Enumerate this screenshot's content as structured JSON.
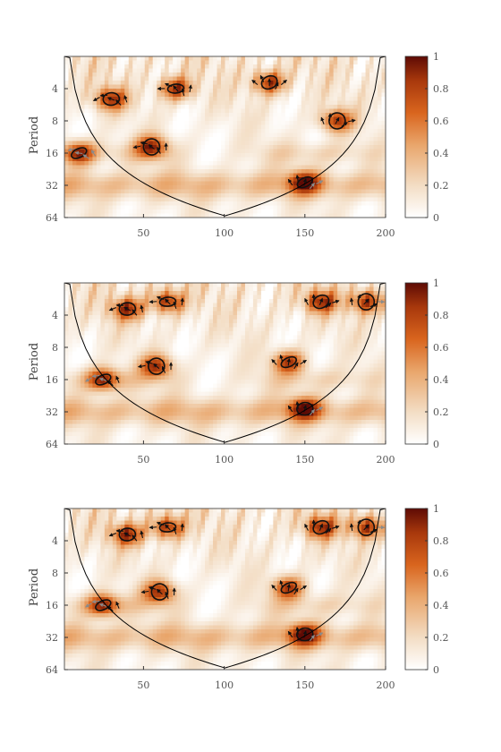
{
  "chart_data": [
    {
      "type": "heatmap",
      "ylabel": "Period",
      "xlim": [
        1,
        200
      ],
      "x_ticks": [
        "50",
        "100",
        "150",
        "200"
      ],
      "y_ticks": [
        "4",
        "8",
        "16",
        "32",
        "64"
      ],
      "y_scale": "log2",
      "ylim": [
        2,
        64
      ],
      "colorbar": {
        "range": [
          0,
          1
        ],
        "ticks": [
          "0",
          "0.2",
          "0.4",
          "0.6",
          "0.8",
          "1"
        ]
      },
      "colormap": [
        "#ffffff",
        "#f3ddc4",
        "#e9a66c",
        "#d9651e",
        "#a8380c",
        "#5e0b05"
      ],
      "cone_of_influence": true,
      "significant_regions": [
        {
          "x": 10,
          "period": 16
        },
        {
          "x": 30,
          "period": 5
        },
        {
          "x": 55,
          "period": 14
        },
        {
          "x": 70,
          "period": 4
        },
        {
          "x": 128,
          "period": 3.5
        },
        {
          "x": 170,
          "period": 8
        },
        {
          "x": 150,
          "period": 30
        }
      ]
    },
    {
      "type": "heatmap",
      "ylabel": "Period",
      "xlim": [
        1,
        200
      ],
      "x_ticks": [
        "50",
        "100",
        "150",
        "200"
      ],
      "y_ticks": [
        "4",
        "8",
        "16",
        "32",
        "64"
      ],
      "y_scale": "log2",
      "ylim": [
        2,
        64
      ],
      "colorbar": {
        "range": [
          0,
          1
        ],
        "ticks": [
          "0",
          "0.2",
          "0.4",
          "0.6",
          "0.8",
          "1"
        ]
      },
      "colormap": [
        "#ffffff",
        "#f3ddc4",
        "#e9a66c",
        "#d9651e",
        "#a8380c",
        "#5e0b05"
      ],
      "cone_of_influence": true,
      "significant_regions": [
        {
          "x": 25,
          "period": 16
        },
        {
          "x": 40,
          "period": 3.5
        },
        {
          "x": 58,
          "period": 12
        },
        {
          "x": 65,
          "period": 3
        },
        {
          "x": 160,
          "period": 3
        },
        {
          "x": 188,
          "period": 3
        },
        {
          "x": 140,
          "period": 11
        },
        {
          "x": 150,
          "period": 30
        }
      ]
    },
    {
      "type": "heatmap",
      "ylabel": "Period",
      "xlim": [
        1,
        200
      ],
      "x_ticks": [
        "50",
        "100",
        "150",
        "200"
      ],
      "y_ticks": [
        "4",
        "8",
        "16",
        "32",
        "64"
      ],
      "y_scale": "log2",
      "ylim": [
        2,
        64
      ],
      "colorbar": {
        "range": [
          0,
          1
        ],
        "ticks": [
          "0",
          "0.2",
          "0.4",
          "0.6",
          "0.8",
          "1"
        ]
      },
      "colormap": [
        "#ffffff",
        "#f3ddc4",
        "#e9a66c",
        "#d9651e",
        "#a8380c",
        "#5e0b05"
      ],
      "cone_of_influence": true,
      "significant_regions": [
        {
          "x": 25,
          "period": 16
        },
        {
          "x": 40,
          "period": 3.5
        },
        {
          "x": 60,
          "period": 12
        },
        {
          "x": 65,
          "period": 3
        },
        {
          "x": 160,
          "period": 3
        },
        {
          "x": 188,
          "period": 3
        },
        {
          "x": 140,
          "period": 11
        },
        {
          "x": 150,
          "period": 30
        }
      ]
    }
  ]
}
